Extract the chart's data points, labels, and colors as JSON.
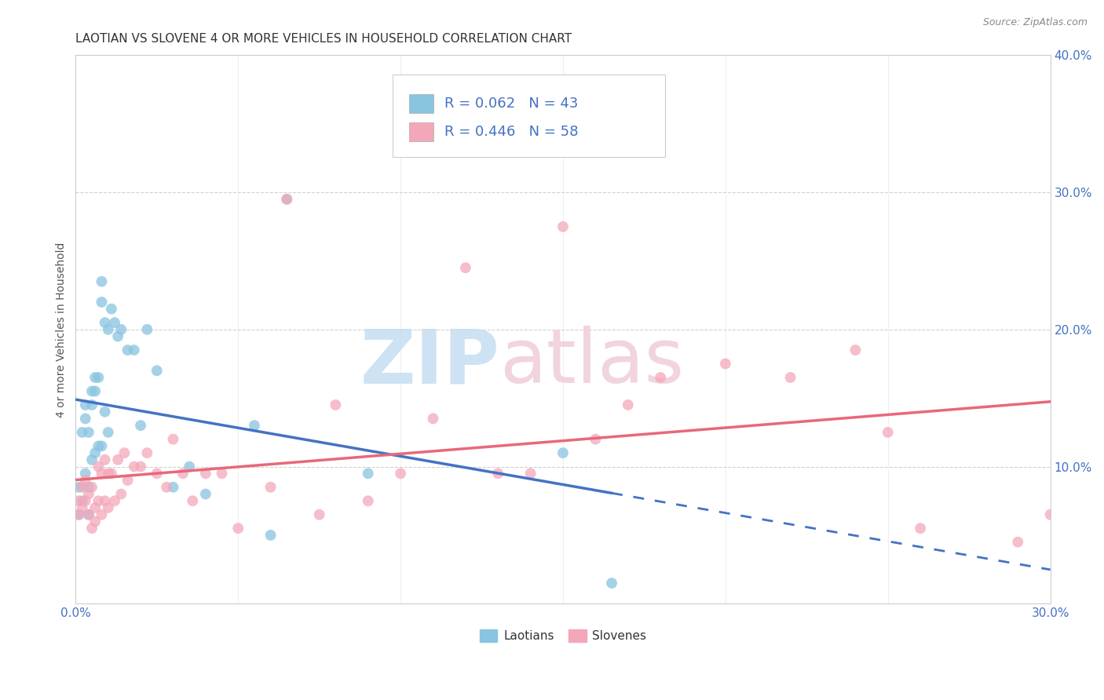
{
  "title": "LAOTIAN VS SLOVENE 4 OR MORE VEHICLES IN HOUSEHOLD CORRELATION CHART",
  "source": "Source: ZipAtlas.com",
  "ylabel": "4 or more Vehicles in Household",
  "xlim": [
    0.0,
    0.3
  ],
  "ylim": [
    0.0,
    0.4
  ],
  "laotian_color": "#89c4e1",
  "slovene_color": "#f4a7b9",
  "laotian_line_color": "#4472c4",
  "slovene_line_color": "#e8687a",
  "legend1_label": "R = 0.062   N = 43",
  "legend2_label": "R = 0.446   N = 58",
  "legend_bottom_label1": "Laotians",
  "legend_bottom_label2": "Slovenes",
  "laotian_x": [
    0.001,
    0.001,
    0.002,
    0.002,
    0.003,
    0.003,
    0.003,
    0.004,
    0.004,
    0.004,
    0.005,
    0.005,
    0.005,
    0.006,
    0.006,
    0.006,
    0.007,
    0.007,
    0.008,
    0.008,
    0.008,
    0.009,
    0.009,
    0.01,
    0.01,
    0.011,
    0.012,
    0.013,
    0.014,
    0.016,
    0.018,
    0.02,
    0.022,
    0.025,
    0.03,
    0.035,
    0.04,
    0.055,
    0.06,
    0.065,
    0.09,
    0.15,
    0.165
  ],
  "laotian_y": [
    0.065,
    0.085,
    0.075,
    0.125,
    0.095,
    0.135,
    0.145,
    0.065,
    0.085,
    0.125,
    0.105,
    0.145,
    0.155,
    0.11,
    0.155,
    0.165,
    0.115,
    0.165,
    0.115,
    0.22,
    0.235,
    0.14,
    0.205,
    0.125,
    0.2,
    0.215,
    0.205,
    0.195,
    0.2,
    0.185,
    0.185,
    0.13,
    0.2,
    0.17,
    0.085,
    0.1,
    0.08,
    0.13,
    0.05,
    0.295,
    0.095,
    0.11,
    0.015
  ],
  "slovene_x": [
    0.001,
    0.001,
    0.002,
    0.002,
    0.003,
    0.003,
    0.004,
    0.004,
    0.005,
    0.005,
    0.006,
    0.006,
    0.007,
    0.007,
    0.008,
    0.008,
    0.009,
    0.009,
    0.01,
    0.01,
    0.011,
    0.012,
    0.013,
    0.014,
    0.015,
    0.016,
    0.018,
    0.02,
    0.022,
    0.025,
    0.028,
    0.03,
    0.033,
    0.036,
    0.04,
    0.045,
    0.05,
    0.06,
    0.065,
    0.075,
    0.08,
    0.09,
    0.1,
    0.11,
    0.12,
    0.13,
    0.14,
    0.15,
    0.16,
    0.17,
    0.18,
    0.2,
    0.22,
    0.24,
    0.25,
    0.26,
    0.29,
    0.3
  ],
  "slovene_y": [
    0.065,
    0.075,
    0.07,
    0.085,
    0.075,
    0.09,
    0.065,
    0.08,
    0.055,
    0.085,
    0.06,
    0.07,
    0.075,
    0.1,
    0.065,
    0.095,
    0.075,
    0.105,
    0.07,
    0.095,
    0.095,
    0.075,
    0.105,
    0.08,
    0.11,
    0.09,
    0.1,
    0.1,
    0.11,
    0.095,
    0.085,
    0.12,
    0.095,
    0.075,
    0.095,
    0.095,
    0.055,
    0.085,
    0.295,
    0.065,
    0.145,
    0.075,
    0.095,
    0.135,
    0.245,
    0.095,
    0.095,
    0.275,
    0.12,
    0.145,
    0.165,
    0.175,
    0.165,
    0.185,
    0.125,
    0.055,
    0.045,
    0.065
  ]
}
